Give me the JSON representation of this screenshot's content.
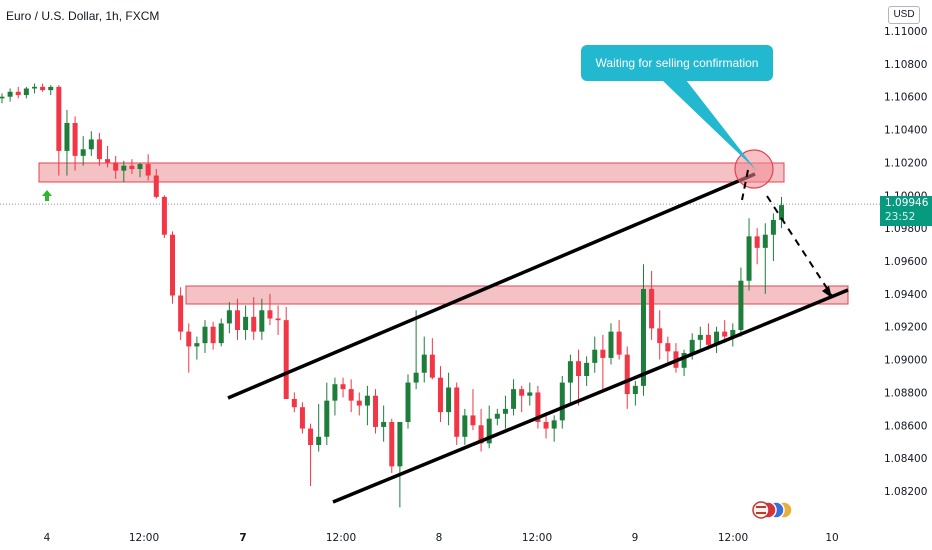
{
  "header": {
    "title": "Euro / U.S. Dollar, 1h, FXCM",
    "currency": "USD"
  },
  "price_tag": {
    "price": "1.09946",
    "countdown": "23:52"
  },
  "annotation": {
    "text": "Waiting for selling confirmation"
  },
  "colors": {
    "up": "#1e7d3a",
    "down": "#f23645",
    "zone_fill": "#f0a6ab",
    "zone_stroke": "#e0454f",
    "callout": "#22b8cf",
    "arrow_up": "#2eb82e"
  },
  "chart_data": {
    "type": "candlestick",
    "symbol": "Euro / U.S. Dollar",
    "interval": "1h",
    "source": "FXCM",
    "ylim": [
      1.0805,
      1.1118
    ],
    "y_ticks": [
      "1.11000",
      "1.10800",
      "1.10600",
      "1.10400",
      "1.10200",
      "1.10000",
      "1.09800",
      "1.09600",
      "1.09400",
      "1.09200",
      "1.09000",
      "1.08800",
      "1.08600",
      "1.08400",
      "1.08200"
    ],
    "x_ticks": [
      "4",
      "12:00",
      "7",
      "12:00",
      "8",
      "12:00",
      "9",
      "12:00",
      "10"
    ],
    "last_price": 1.09946,
    "series": [
      {
        "name": "candles",
        "values": [
          [
            1.1059,
            1.1062,
            1.1056,
            1.106
          ],
          [
            1.106,
            1.1065,
            1.1057,
            1.1063
          ],
          [
            1.1063,
            1.1066,
            1.1059,
            1.1061
          ],
          [
            1.1061,
            1.1066,
            1.1059,
            1.1065
          ],
          [
            1.1065,
            1.1068,
            1.1062,
            1.1066
          ],
          [
            1.1066,
            1.1068,
            1.1063,
            1.1064
          ],
          [
            1.1064,
            1.1067,
            1.1061,
            1.1066
          ],
          [
            1.1066,
            1.1067,
            1.1012,
            1.1027
          ],
          [
            1.1027,
            1.1052,
            1.1012,
            1.1044
          ],
          [
            1.1044,
            1.1048,
            1.1015,
            1.1024
          ],
          [
            1.1024,
            1.1036,
            1.1018,
            1.1028
          ],
          [
            1.1028,
            1.1039,
            1.1024,
            1.1034
          ],
          [
            1.1034,
            1.1038,
            1.1018,
            1.1022
          ],
          [
            1.1022,
            1.103,
            1.1017,
            1.102
          ],
          [
            1.102,
            1.1024,
            1.101,
            1.1015
          ],
          [
            1.1015,
            1.1021,
            1.1008,
            1.1018
          ],
          [
            1.1018,
            1.1022,
            1.1013,
            1.1016
          ],
          [
            1.1016,
            1.102,
            1.1011,
            1.1019
          ],
          [
            1.1019,
            1.1025,
            1.1009,
            1.1012
          ],
          [
            1.1012,
            1.1016,
            1.0998,
            1.0999
          ],
          [
            1.0999,
            1.1,
            1.0974,
            1.0976
          ],
          [
            1.0976,
            1.0978,
            1.0934,
            1.0939
          ],
          [
            1.0939,
            1.0944,
            1.0912,
            1.0917
          ],
          [
            1.0917,
            1.0922,
            1.0892,
            1.0908
          ],
          [
            1.0908,
            1.0914,
            1.09,
            1.091
          ],
          [
            1.091,
            1.0924,
            1.0904,
            1.092
          ],
          [
            1.092,
            1.0923,
            1.0906,
            1.091
          ],
          [
            1.091,
            1.0925,
            1.0908,
            1.0922
          ],
          [
            1.0922,
            1.0935,
            1.0916,
            1.093
          ],
          [
            1.093,
            1.0937,
            1.0912,
            1.0918
          ],
          [
            1.0918,
            1.0933,
            1.0912,
            1.0926
          ],
          [
            1.0926,
            1.0938,
            1.0912,
            1.0917
          ],
          [
            1.0917,
            1.0937,
            1.0912,
            1.093
          ],
          [
            1.093,
            1.094,
            1.0921,
            1.0925
          ],
          [
            1.0925,
            1.0933,
            1.0915,
            1.0924
          ],
          [
            1.0924,
            1.0932,
            1.0904,
            1.0876
          ],
          [
            1.0876,
            1.088,
            1.0868,
            1.0871
          ],
          [
            1.0871,
            1.0874,
            1.0855,
            1.0858
          ],
          [
            1.0858,
            1.0861,
            1.0823,
            1.0848
          ],
          [
            1.0848,
            1.0873,
            1.0844,
            1.0853
          ],
          [
            1.0853,
            1.0886,
            1.0848,
            1.0875
          ],
          [
            1.0875,
            1.0889,
            1.0866,
            1.0885
          ],
          [
            1.0885,
            1.0889,
            1.0877,
            1.0882
          ],
          [
            1.0882,
            1.0888,
            1.0868,
            1.0875
          ],
          [
            1.0875,
            1.088,
            1.0866,
            1.0872
          ],
          [
            1.0872,
            1.0884,
            1.086,
            1.0878
          ],
          [
            1.0878,
            1.0882,
            1.0855,
            1.0859
          ],
          [
            1.0859,
            1.0872,
            1.085,
            1.0862
          ],
          [
            1.0862,
            1.0864,
            1.0831,
            1.0835
          ],
          [
            1.0835,
            1.0853,
            1.081,
            1.0862
          ],
          [
            1.0862,
            1.0891,
            1.0858,
            1.0886
          ],
          [
            1.0886,
            1.093,
            1.0882,
            1.0892
          ],
          [
            1.0892,
            1.0914,
            1.0886,
            1.0903
          ],
          [
            1.0903,
            1.0913,
            1.0888,
            1.0889
          ],
          [
            1.0889,
            1.0896,
            1.0862,
            1.0868
          ],
          [
            1.0868,
            1.0892,
            1.086,
            1.0883
          ],
          [
            1.0883,
            1.0886,
            1.0848,
            1.0853
          ],
          [
            1.0853,
            1.087,
            1.0848,
            1.0866
          ],
          [
            1.0866,
            1.0882,
            1.0857,
            1.086
          ],
          [
            1.086,
            1.087,
            1.0844,
            1.0849
          ],
          [
            1.0849,
            1.0872,
            1.0846,
            1.0864
          ],
          [
            1.0864,
            1.087,
            1.086,
            1.0867
          ],
          [
            1.0867,
            1.0878,
            1.0858,
            1.087
          ],
          [
            1.087,
            1.0888,
            1.0866,
            1.0882
          ],
          [
            1.0882,
            1.0884,
            1.0868,
            1.0878
          ],
          [
            1.0878,
            1.0886,
            1.0872,
            1.088
          ],
          [
            1.088,
            1.0884,
            1.0858,
            1.0862
          ],
          [
            1.0862,
            1.0868,
            1.0852,
            1.0858
          ],
          [
            1.0858,
            1.0866,
            1.085,
            1.0863
          ],
          [
            1.0863,
            1.089,
            1.0858,
            1.0886
          ],
          [
            1.0886,
            1.0903,
            1.0872,
            1.0899
          ],
          [
            1.0899,
            1.0906,
            1.0872,
            1.089
          ],
          [
            1.089,
            1.0902,
            1.0884,
            1.0898
          ],
          [
            1.0898,
            1.0914,
            1.0892,
            1.0906
          ],
          [
            1.0906,
            1.0915,
            1.088,
            1.0901
          ],
          [
            1.0901,
            1.0922,
            1.0897,
            1.0917
          ],
          [
            1.0917,
            1.0924,
            1.09,
            1.0903
          ],
          [
            1.0903,
            1.0908,
            1.087,
            1.0879
          ],
          [
            1.0879,
            1.0887,
            1.0872,
            1.0884
          ],
          [
            1.0884,
            1.0958,
            1.0878,
            1.0943
          ],
          [
            1.0943,
            1.0954,
            1.0912,
            1.0919
          ],
          [
            1.0919,
            1.093,
            1.09,
            1.091
          ],
          [
            1.091,
            1.0914,
            1.0898,
            1.0905
          ],
          [
            1.0905,
            1.091,
            1.0892,
            1.0895
          ],
          [
            1.0895,
            1.0906,
            1.089,
            1.0904
          ],
          [
            1.0904,
            1.0916,
            1.09,
            1.0912
          ],
          [
            1.0912,
            1.092,
            1.0906,
            1.0915
          ],
          [
            1.0915,
            1.0922,
            1.0906,
            1.0909
          ],
          [
            1.0909,
            1.092,
            1.0904,
            1.0917
          ],
          [
            1.0917,
            1.0924,
            1.091,
            1.0914
          ],
          [
            1.0914,
            1.0922,
            1.0908,
            1.0918
          ],
          [
            1.0918,
            1.0956,
            1.0914,
            1.0948
          ],
          [
            1.0948,
            1.0986,
            1.0942,
            1.0975
          ],
          [
            1.0975,
            1.098,
            1.0958,
            1.0968
          ],
          [
            1.0968,
            1.0983,
            1.094,
            1.0976
          ],
          [
            1.0976,
            1.0989,
            1.096,
            1.0985
          ],
          [
            1.0985,
            1.0999,
            1.098,
            1.0994
          ]
        ]
      }
    ]
  }
}
